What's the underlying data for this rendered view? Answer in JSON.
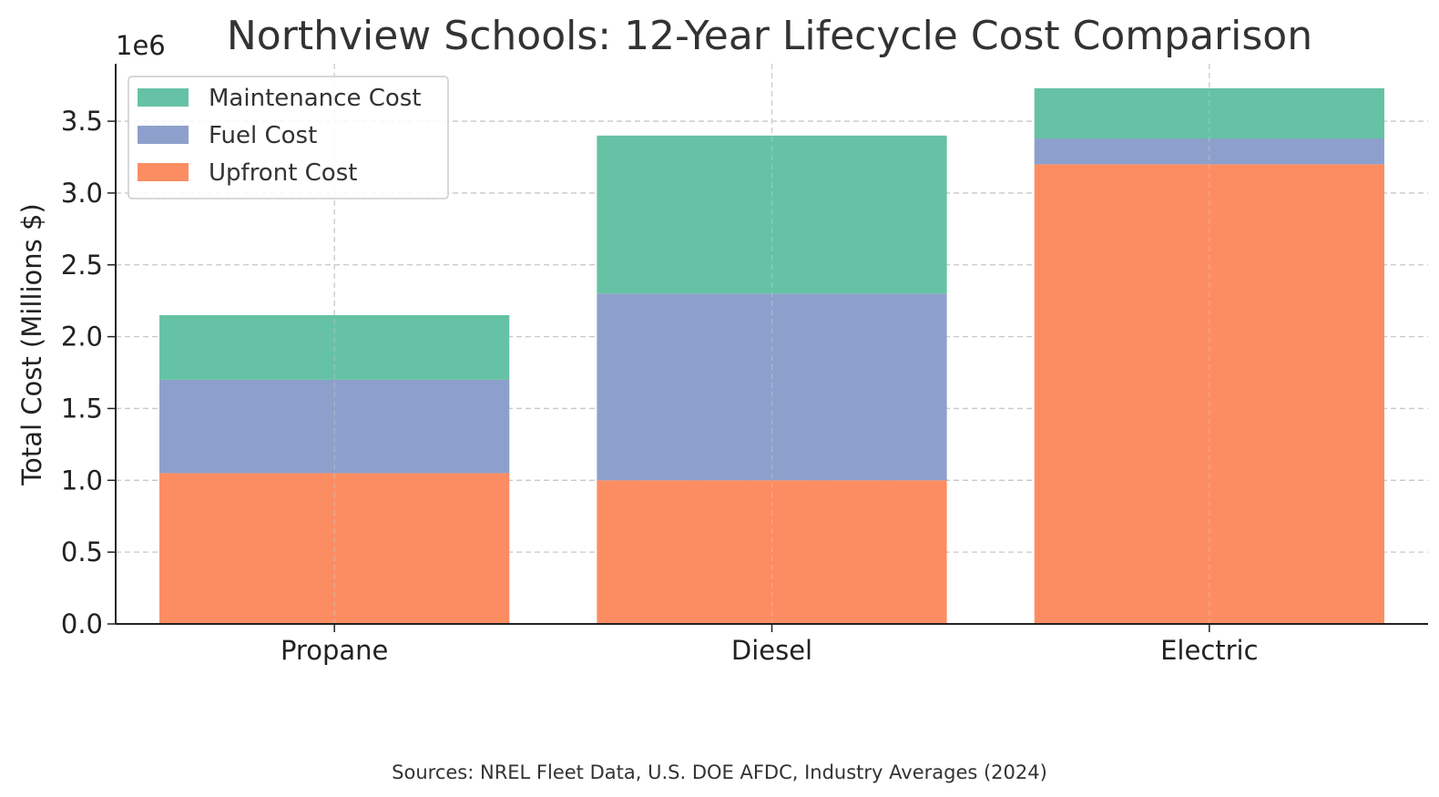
{
  "chart_data": {
    "type": "bar",
    "stacked": true,
    "title": "Northview Schools: 12-Year Lifecycle Cost Comparison",
    "xlabel": "",
    "ylabel": "Total Cost (Millions $)",
    "offset_label": "1e6",
    "categories": [
      "Propane",
      "Diesel",
      "Electric"
    ],
    "series": [
      {
        "name": "Upfront Cost",
        "color": "#fc8d62",
        "values": [
          1050000,
          1000000,
          3200000
        ]
      },
      {
        "name": "Fuel Cost",
        "color": "#8da0cb",
        "values": [
          650000,
          1300000,
          180000
        ]
      },
      {
        "name": "Maintenance Cost",
        "color": "#66c2a5",
        "values": [
          450000,
          1100000,
          350000
        ]
      }
    ],
    "ylim": [
      0,
      3900000
    ],
    "yticks": [
      0,
      500000,
      1000000,
      1500000,
      2000000,
      2500000,
      3000000,
      3500000
    ],
    "ytick_labels": [
      "0.0",
      "0.5",
      "1.0",
      "1.5",
      "2.0",
      "2.5",
      "3.0",
      "3.5"
    ],
    "grid": true,
    "legend_position": "top-left",
    "legend_order": [
      "Maintenance Cost",
      "Fuel Cost",
      "Upfront Cost"
    ],
    "source_note": "Sources: NREL Fleet Data, U.S. DOE AFDC, Industry Averages (2024)"
  }
}
